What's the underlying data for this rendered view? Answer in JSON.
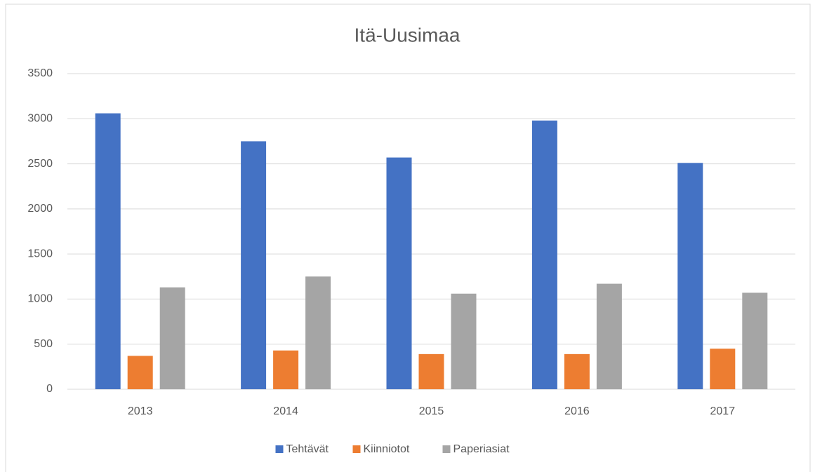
{
  "chart_data": {
    "type": "bar",
    "title": "Itä-Uusimaa",
    "categories": [
      "2013",
      "2014",
      "2015",
      "2016",
      "2017"
    ],
    "series": [
      {
        "name": "Tehtävät",
        "color": "#4472c4",
        "values": [
          3060,
          2750,
          2570,
          2980,
          2510
        ]
      },
      {
        "name": "Kiinniotot",
        "color": "#ed7d31",
        "values": [
          370,
          430,
          390,
          390,
          450
        ]
      },
      {
        "name": "Paperiasiat",
        "color": "#a5a5a5",
        "values": [
          1130,
          1250,
          1060,
          1170,
          1070
        ]
      }
    ],
    "ylim": [
      0,
      3500
    ],
    "yticks": [
      0,
      500,
      1000,
      1500,
      2000,
      2500,
      3000,
      3500
    ],
    "grid": true,
    "legend": "bottom"
  }
}
